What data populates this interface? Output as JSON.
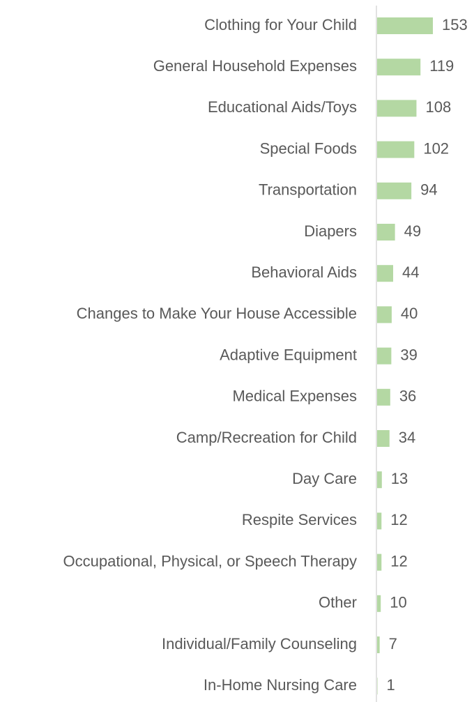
{
  "chart_data": {
    "type": "bar",
    "orientation": "horizontal",
    "categories": [
      "Clothing for Your Child",
      "General Household Expenses",
      "Educational Aids/Toys",
      "Special Foods",
      "Transportation",
      "Diapers",
      "Behavioral Aids",
      "Changes to Make Your House Accessible",
      "Adaptive Equipment",
      "Medical Expenses",
      "Camp/Recreation for Child",
      "Day Care",
      "Respite Services",
      "Occupational, Physical, or Speech Therapy",
      "Other",
      "Individual/Family Counseling",
      "In-Home Nursing Care"
    ],
    "values": [
      153,
      119,
      108,
      102,
      94,
      49,
      44,
      40,
      39,
      36,
      34,
      13,
      12,
      12,
      10,
      7,
      1
    ],
    "color": "#b4d8a3"
  }
}
